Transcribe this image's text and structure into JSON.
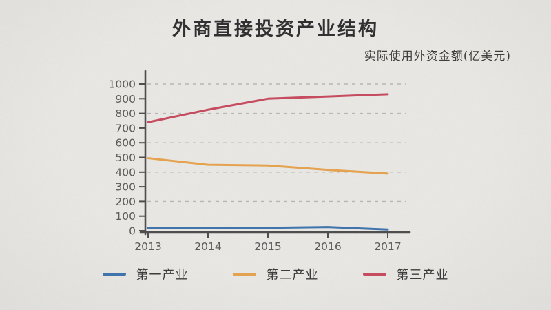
{
  "title": "外商直接投资产业结构",
  "subtitle": "实际使用外资金额(亿美元)",
  "colors": {
    "background": "#eae9e5",
    "axis": "#4d4d4d",
    "grid": "#b8b8b6",
    "title_text": "#2e2e2e",
    "tick_text": "#5a5a5a",
    "legend_text": "#3a3a3a"
  },
  "chart_data": {
    "type": "line",
    "title": "外商直接投资产业结构",
    "subtitle": "实际使用外资金额(亿美元)",
    "x": [
      "2013",
      "2014",
      "2015",
      "2016",
      "2017"
    ],
    "series": [
      {
        "name": "第一产业",
        "color": "#3d74ad",
        "values": [
          20,
          18,
          20,
          25,
          8
        ]
      },
      {
        "name": "第二产业",
        "color": "#e8a44e",
        "values": [
          495,
          450,
          445,
          415,
          390
        ]
      },
      {
        "name": "第三产业",
        "color": "#c94a5f",
        "values": [
          740,
          825,
          900,
          915,
          930
        ]
      }
    ],
    "xlabel": "",
    "ylabel": "",
    "ylim": [
      0,
      1000
    ],
    "yticks": [
      0,
      100,
      200,
      300,
      400,
      500,
      600,
      700,
      800,
      900,
      1000
    ],
    "grid_values": [
      200,
      400,
      600,
      800,
      1000
    ],
    "grid_style": "dashed",
    "legend_position": "bottom"
  }
}
